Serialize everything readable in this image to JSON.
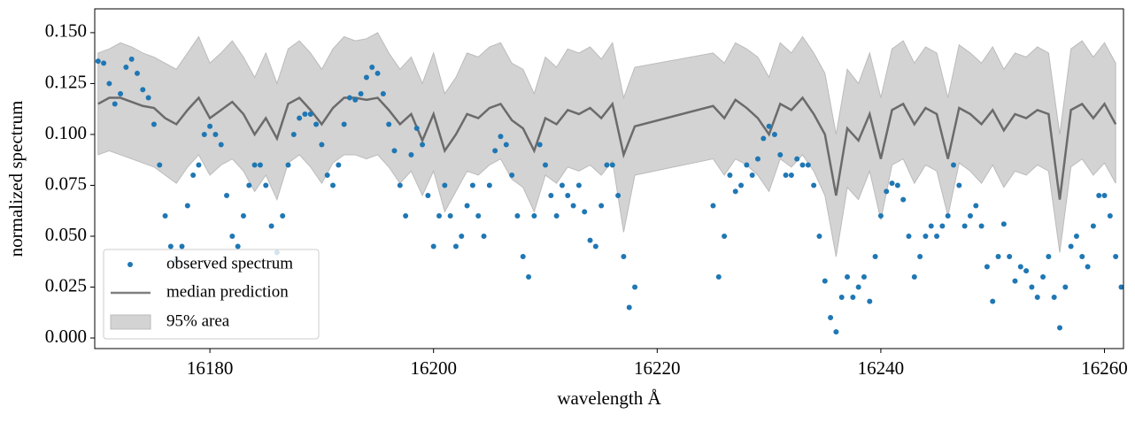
{
  "chart_data": {
    "type": "line",
    "xlabel": "wavelength Å",
    "ylabel": "normalized spectrum",
    "xlim": [
      16169.7,
      16261.7
    ],
    "ylim": [
      -0.0052,
      0.1617
    ],
    "xticks": [
      16180,
      16200,
      16220,
      16240,
      16260
    ],
    "yticks": [
      {
        "value": 0,
        "label": "0.000"
      },
      0.025,
      {
        "value": 0.05,
        "label": "0.050"
      },
      0.075,
      {
        "value": 0.1,
        "label": "0.100"
      },
      0.125,
      {
        "value": 0.15,
        "label": "0.150"
      }
    ],
    "legend": "lower left",
    "series": [
      {
        "name": "observed spectrum",
        "style": "dots",
        "color": "#1f77b4",
        "x": [
          16170,
          16170.5,
          16171,
          16171.5,
          16172,
          16172.5,
          16173,
          16173.5,
          16174,
          16174.5,
          16175,
          16175.5,
          16176,
          16176.5,
          16177,
          16177.5,
          16178,
          16178.5,
          16179,
          16179.5,
          16180,
          16180.5,
          16181,
          16181.5,
          16182,
          16182.5,
          16183,
          16183.5,
          16184,
          16184.5,
          16185,
          16185.5,
          16186,
          16186.5,
          16187,
          16187.5,
          16188,
          16188.5,
          16189,
          16189.5,
          16190,
          16190.5,
          16191,
          16191.5,
          16192,
          16192.5,
          16193,
          16193.5,
          16194,
          16194.5,
          16195,
          16195.5,
          16196,
          16196.5,
          16197,
          16197.5,
          16198,
          16198.5,
          16199,
          16199.5,
          16200,
          16200.5,
          16201,
          16201.5,
          16202,
          16202.5,
          16203,
          16203.5,
          16204,
          16204.5,
          16205,
          16205.5,
          16206,
          16206.5,
          16207,
          16207.5,
          16208,
          16208.5,
          16209,
          16209.5,
          16210,
          16210.5,
          16211,
          16211.5,
          16212,
          16212.5,
          16213,
          16213.5,
          16214,
          16214.5,
          16215,
          16215.5,
          16216,
          16216.5,
          16217,
          16217.5,
          16218,
          16225,
          16225.5,
          16226,
          16226.5,
          16227,
          16227.5,
          16228,
          16228.5,
          16229,
          16229.5,
          16230,
          16230.5,
          16231,
          16231.5,
          16232,
          16232.5,
          16233,
          16233.5,
          16234,
          16234.5,
          16235,
          16235.5,
          16236,
          16236.5,
          16237,
          16237.5,
          16238,
          16238.5,
          16239,
          16239.5,
          16240,
          16240.5,
          16241,
          16241.5,
          16242,
          16242.5,
          16243,
          16243.5,
          16244,
          16244.5,
          16245,
          16245.5,
          16246,
          16246.5,
          16247,
          16247.5,
          16248,
          16248.5,
          16249,
          16249.5,
          16250,
          16250.5,
          16251,
          16251.5,
          16252,
          16252.5,
          16253,
          16253.5,
          16254,
          16254.5,
          16255,
          16255.5,
          16256,
          16256.5,
          16257,
          16257.5,
          16258,
          16258.5,
          16259,
          16259.5,
          16260,
          16260.5,
          16261,
          16261.5
        ],
        "values": [
          0.136,
          0.135,
          0.125,
          0.115,
          0.12,
          0.133,
          0.137,
          0.13,
          0.122,
          0.118,
          0.105,
          0.085,
          0.06,
          0.045,
          0.038,
          0.045,
          0.065,
          0.08,
          0.085,
          0.1,
          0.104,
          0.1,
          0.095,
          0.07,
          0.05,
          0.045,
          0.06,
          0.075,
          0.085,
          0.085,
          0.075,
          0.055,
          0.042,
          0.06,
          0.085,
          0.1,
          0.108,
          0.11,
          0.11,
          0.105,
          0.095,
          0.08,
          0.075,
          0.085,
          0.105,
          0.118,
          0.117,
          0.12,
          0.128,
          0.133,
          0.13,
          0.12,
          0.105,
          0.092,
          0.075,
          0.06,
          0.09,
          0.103,
          0.095,
          0.07,
          0.045,
          0.06,
          0.075,
          0.06,
          0.045,
          0.05,
          0.065,
          0.075,
          0.06,
          0.05,
          0.075,
          0.092,
          0.099,
          0.095,
          0.08,
          0.06,
          0.04,
          0.03,
          0.06,
          0.095,
          0.085,
          0.07,
          0.06,
          0.075,
          0.07,
          0.065,
          0.075,
          0.062,
          0.048,
          0.045,
          0.065,
          0.085,
          0.085,
          0.07,
          0.04,
          0.015,
          0.025,
          0.065,
          0.03,
          0.05,
          0.08,
          0.072,
          0.075,
          0.085,
          0.08,
          0.088,
          0.098,
          0.104,
          0.1,
          0.09,
          0.08,
          0.08,
          0.088,
          0.085,
          0.085,
          0.075,
          0.05,
          0.028,
          0.01,
          0.003,
          0.02,
          0.03,
          0.02,
          0.025,
          0.03,
          0.018,
          0.04,
          0.06,
          0.072,
          0.076,
          0.075,
          0.068,
          0.05,
          0.03,
          0.04,
          0.05,
          0.055,
          0.05,
          0.055,
          0.06,
          0.085,
          0.075,
          0.055,
          0.06,
          0.065,
          0.055,
          0.035,
          0.018,
          0.04,
          0.056,
          0.04,
          0.028,
          0.035,
          0.033,
          0.025,
          0.02,
          0.03,
          0.04,
          0.02,
          0.005,
          0.025,
          0.045,
          0.05,
          0.04,
          0.035,
          0.055,
          0.07,
          0.07,
          0.06,
          0.04,
          0.025
        ]
      },
      {
        "name": "median prediction",
        "style": "line",
        "color": "#6b6b6b",
        "x": [
          16170,
          16171,
          16172,
          16173,
          16174,
          16175,
          16176,
          16177,
          16178,
          16179,
          16180,
          16181,
          16182,
          16183,
          16184,
          16185,
          16186,
          16187,
          16188,
          16189,
          16190,
          16191,
          16192,
          16193,
          16194,
          16195,
          16196,
          16197,
          16198,
          16199,
          16200,
          16201,
          16202,
          16203,
          16204,
          16205,
          16206,
          16207,
          16208,
          16209,
          16210,
          16211,
          16212,
          16213,
          16214,
          16215,
          16216,
          16217,
          16218,
          16225,
          16226,
          16227,
          16228,
          16229,
          16230,
          16231,
          16232,
          16233,
          16234,
          16235,
          16236,
          16237,
          16238,
          16239,
          16240,
          16241,
          16242,
          16243,
          16244,
          16245,
          16246,
          16247,
          16248,
          16249,
          16250,
          16251,
          16252,
          16253,
          16254,
          16255,
          16256,
          16257,
          16258,
          16259,
          16260,
          16261
        ],
        "values": [
          0.115,
          0.118,
          0.118,
          0.116,
          0.114,
          0.113,
          0.108,
          0.105,
          0.112,
          0.118,
          0.108,
          0.112,
          0.116,
          0.11,
          0.1,
          0.108,
          0.098,
          0.115,
          0.118,
          0.112,
          0.105,
          0.113,
          0.118,
          0.118,
          0.117,
          0.118,
          0.112,
          0.105,
          0.11,
          0.097,
          0.11,
          0.092,
          0.1,
          0.11,
          0.108,
          0.113,
          0.115,
          0.107,
          0.103,
          0.092,
          0.108,
          0.105,
          0.112,
          0.11,
          0.113,
          0.108,
          0.115,
          0.09,
          0.104,
          0.114,
          0.108,
          0.117,
          0.113,
          0.108,
          0.1,
          0.115,
          0.112,
          0.118,
          0.11,
          0.1,
          0.07,
          0.103,
          0.097,
          0.11,
          0.088,
          0.112,
          0.115,
          0.105,
          0.113,
          0.11,
          0.088,
          0.113,
          0.11,
          0.105,
          0.112,
          0.102,
          0.11,
          0.108,
          0.112,
          0.11,
          0.068,
          0.112,
          0.115,
          0.108,
          0.115,
          0.105
        ]
      },
      {
        "name": "95% area",
        "style": "band",
        "color": "#d3d3d3",
        "x": [
          16170,
          16171,
          16172,
          16173,
          16174,
          16175,
          16176,
          16177,
          16178,
          16179,
          16180,
          16181,
          16182,
          16183,
          16184,
          16185,
          16186,
          16187,
          16188,
          16189,
          16190,
          16191,
          16192,
          16193,
          16194,
          16195,
          16196,
          16197,
          16198,
          16199,
          16200,
          16201,
          16202,
          16203,
          16204,
          16205,
          16206,
          16207,
          16208,
          16209,
          16210,
          16211,
          16212,
          16213,
          16214,
          16215,
          16216,
          16217,
          16218,
          16225,
          16226,
          16227,
          16228,
          16229,
          16230,
          16231,
          16232,
          16233,
          16234,
          16235,
          16236,
          16237,
          16238,
          16239,
          16240,
          16241,
          16242,
          16243,
          16244,
          16245,
          16246,
          16247,
          16248,
          16249,
          16250,
          16251,
          16252,
          16253,
          16254,
          16255,
          16256,
          16257,
          16258,
          16259,
          16260,
          16261
        ],
        "upper": [
          0.14,
          0.142,
          0.145,
          0.143,
          0.14,
          0.138,
          0.135,
          0.132,
          0.14,
          0.148,
          0.135,
          0.14,
          0.146,
          0.138,
          0.128,
          0.14,
          0.125,
          0.142,
          0.146,
          0.14,
          0.132,
          0.142,
          0.148,
          0.146,
          0.147,
          0.15,
          0.14,
          0.132,
          0.138,
          0.125,
          0.14,
          0.12,
          0.128,
          0.14,
          0.138,
          0.143,
          0.145,
          0.135,
          0.132,
          0.12,
          0.138,
          0.133,
          0.142,
          0.14,
          0.143,
          0.137,
          0.145,
          0.118,
          0.133,
          0.14,
          0.135,
          0.145,
          0.142,
          0.138,
          0.128,
          0.145,
          0.14,
          0.148,
          0.14,
          0.13,
          0.1,
          0.132,
          0.125,
          0.14,
          0.118,
          0.142,
          0.146,
          0.135,
          0.143,
          0.14,
          0.118,
          0.144,
          0.14,
          0.135,
          0.143,
          0.132,
          0.14,
          0.138,
          0.143,
          0.14,
          0.1,
          0.142,
          0.146,
          0.138,
          0.145,
          0.135
        ],
        "lower": [
          0.09,
          0.092,
          0.09,
          0.088,
          0.086,
          0.084,
          0.08,
          0.076,
          0.084,
          0.09,
          0.08,
          0.085,
          0.088,
          0.082,
          0.072,
          0.08,
          0.068,
          0.086,
          0.09,
          0.084,
          0.076,
          0.086,
          0.09,
          0.09,
          0.088,
          0.09,
          0.084,
          0.076,
          0.082,
          0.07,
          0.082,
          0.062,
          0.072,
          0.082,
          0.08,
          0.085,
          0.088,
          0.078,
          0.074,
          0.062,
          0.08,
          0.076,
          0.084,
          0.082,
          0.085,
          0.08,
          0.087,
          0.052,
          0.08,
          0.088,
          0.08,
          0.088,
          0.085,
          0.08,
          0.072,
          0.088,
          0.084,
          0.09,
          0.082,
          0.07,
          0.04,
          0.074,
          0.068,
          0.082,
          0.058,
          0.085,
          0.088,
          0.076,
          0.085,
          0.082,
          0.06,
          0.086,
          0.082,
          0.076,
          0.085,
          0.074,
          0.082,
          0.08,
          0.085,
          0.082,
          0.042,
          0.084,
          0.088,
          0.08,
          0.086,
          0.076
        ]
      }
    ]
  }
}
